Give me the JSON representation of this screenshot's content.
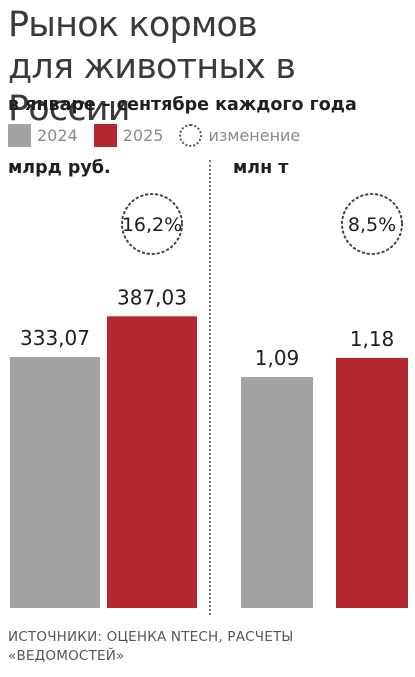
{
  "title_line1": "Рынок кормов",
  "title_line2": "для животных в России",
  "subtitle": "в январе – сентябре каждого года",
  "legend": {
    "y2024": "2024",
    "y2025": "2025",
    "change": "изменение"
  },
  "colors": {
    "y2024": "#a3a3a3",
    "y2025": "#b3282e"
  },
  "icons": {
    "change": "dotted-circle-icon"
  },
  "source_line1": "ИСТОЧНИКИ: ОЦЕНКА NTECH, РАСЧЕТЫ",
  "source_line2": "«ВЕДОМОСТЕЙ»",
  "chart_data": [
    {
      "type": "bar",
      "unit": "млрд руб.",
      "categories": [
        "2024",
        "2025"
      ],
      "values": [
        333.07,
        387.03
      ],
      "value_labels": [
        "333,07",
        "387,03"
      ],
      "change_label": "16,2%"
    },
    {
      "type": "bar",
      "unit": "млн т",
      "categories": [
        "2024",
        "2025"
      ],
      "values": [
        1.09,
        1.18
      ],
      "value_labels": [
        "1,09",
        "1,18"
      ],
      "change_label": "8,5%"
    }
  ]
}
